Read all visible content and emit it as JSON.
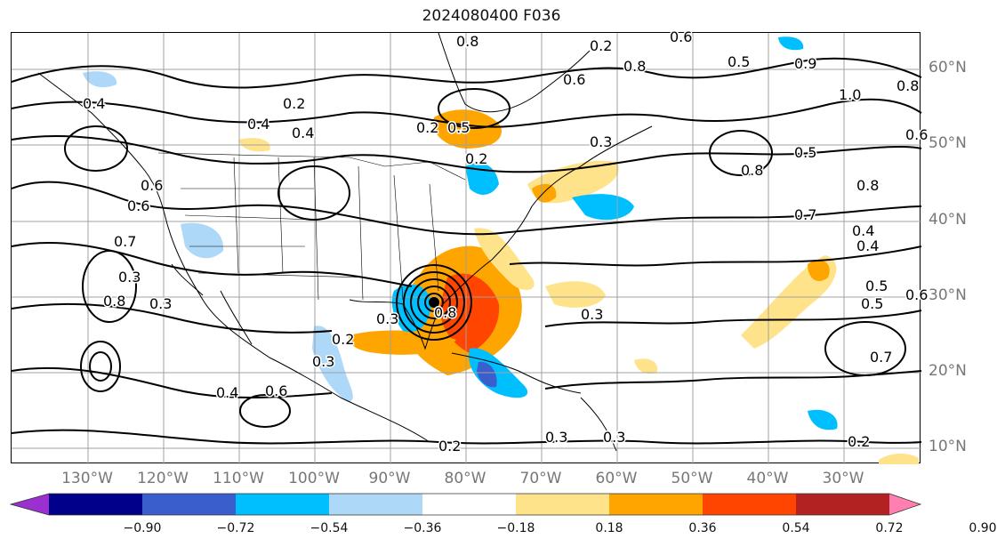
{
  "title": "2024080400 F036",
  "lat_labels": [
    "60°N",
    "50°N",
    "40°N",
    "30°N",
    "20°N",
    "10°N"
  ],
  "lon_labels": [
    "130°W",
    "120°W",
    "110°W",
    "100°W",
    "90°W",
    "80°W",
    "70°W",
    "60°W",
    "50°W",
    "40°W",
    "30°W"
  ],
  "colorbar": {
    "ticks": [
      "−0.90",
      "−0.72",
      "−0.54",
      "−0.36",
      "−0.18",
      "0.18",
      "0.36",
      "0.54",
      "0.72",
      "0.90"
    ],
    "colors": [
      "#9b30d0",
      "#00008b",
      "#3a5fcd",
      "#00bfff",
      "#add8f7",
      "#ffffff",
      "#ffe38a",
      "#ffa500",
      "#ff4500",
      "#b22222",
      "#ff80b0"
    ]
  },
  "contour_labels": [
    "0.8",
    "0.2",
    "0.6",
    "0.5",
    "0.8",
    "0.9",
    "1.0",
    "0.8",
    "0.6",
    "0.4",
    "0.2",
    "0.5",
    "0.4",
    "0.6",
    "0.4",
    "0.2",
    "0.3",
    "0.2",
    "0.6",
    "0.7",
    "0.3",
    "0.6",
    "0.5",
    "0.8",
    "0.7",
    "0.4",
    "0.8",
    "0.3",
    "0.3",
    "0.3",
    "0.2",
    "0.3",
    "0.4",
    "0.6",
    "0.3",
    "0.2",
    "0.3",
    "0.5",
    "0.4",
    "0.5",
    "0.6",
    "0.7",
    "0.2",
    "0.8",
    "0.8"
  ]
}
